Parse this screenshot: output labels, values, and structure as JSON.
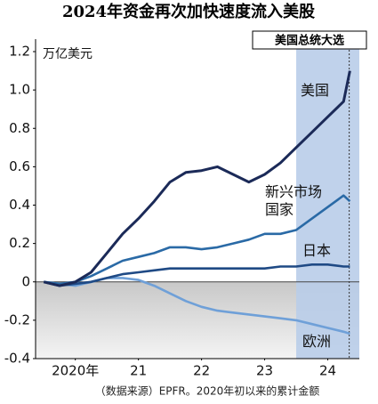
{
  "chart_data": {
    "type": "line",
    "title": "2024年资金再次加快速度流入美股",
    "y_unit": "万亿美元",
    "source": "（数据来源）EPFR。2020年初以来的累计金额",
    "x": [
      2020,
      2020.25,
      2020.5,
      2020.75,
      2021,
      2021.25,
      2021.5,
      2021.75,
      2022,
      2022.25,
      2022.5,
      2022.75,
      2023,
      2023.25,
      2023.5,
      2023.75,
      2024,
      2024.25,
      2024.5,
      2024.75,
      2024.85
    ],
    "series": [
      {
        "name": "美国",
        "color": "#1b2a58",
        "values": [
          0,
          -0.02,
          0,
          0.05,
          0.15,
          0.25,
          0.33,
          0.42,
          0.52,
          0.57,
          0.58,
          0.6,
          0.56,
          0.52,
          0.56,
          0.62,
          0.7,
          0.78,
          0.86,
          0.94,
          1.1
        ]
      },
      {
        "name": "新兴市场国家",
        "color": "#2a6aa6",
        "values": [
          0,
          -0.01,
          0,
          0.03,
          0.07,
          0.11,
          0.13,
          0.15,
          0.18,
          0.18,
          0.17,
          0.18,
          0.2,
          0.22,
          0.25,
          0.25,
          0.27,
          0.33,
          0.39,
          0.45,
          0.42
        ]
      },
      {
        "name": "日本",
        "color": "#1f4a85",
        "values": [
          0,
          -0.02,
          -0.01,
          0,
          0.02,
          0.04,
          0.05,
          0.06,
          0.07,
          0.07,
          0.07,
          0.07,
          0.07,
          0.07,
          0.07,
          0.08,
          0.08,
          0.09,
          0.09,
          0.08,
          0.08
        ]
      },
      {
        "name": "欧洲",
        "color": "#6fa0d8",
        "values": [
          0,
          -0.01,
          -0.02,
          0,
          0.02,
          0.02,
          0.01,
          -0.02,
          -0.06,
          -0.1,
          -0.13,
          -0.15,
          -0.16,
          -0.17,
          -0.18,
          -0.19,
          -0.2,
          -0.22,
          -0.24,
          -0.26,
          -0.27
        ]
      }
    ],
    "xlim": [
      2019.87,
      2025
    ],
    "xticks": [
      {
        "value": 2020.5,
        "label": "2020年"
      },
      {
        "value": 2021.5,
        "label": "21"
      },
      {
        "value": 2022.5,
        "label": "22"
      },
      {
        "value": 2023.5,
        "label": "23"
      },
      {
        "value": 2024.5,
        "label": "24"
      }
    ],
    "ylim": [
      -0.4,
      1.2
    ],
    "yticks": [
      -0.4,
      -0.2,
      0,
      0.2,
      0.4,
      0.6,
      0.8,
      {
        "value": 1,
        "label": "1.0"
      },
      1.2
    ],
    "shade_from": 2024,
    "annotation": {
      "text": "美国总统大选",
      "x": 2024.84
    }
  }
}
